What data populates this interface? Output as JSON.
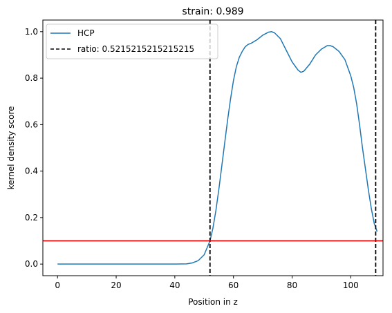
{
  "chart_data": {
    "type": "line",
    "title": "strain: 0.989",
    "xlabel": "Position in z",
    "ylabel": "kernel density score",
    "xlim": [
      -5,
      111
    ],
    "ylim": [
      -0.05,
      1.05
    ],
    "xticks": [
      0,
      20,
      40,
      60,
      80,
      100
    ],
    "yticks": [
      0.0,
      0.2,
      0.4,
      0.6,
      0.8,
      1.0
    ],
    "grid": false,
    "legend_position": "top-left",
    "series": [
      {
        "name": "HCP",
        "color": "#1f77b4",
        "x": [
          0,
          10,
          20,
          30,
          40,
          44,
          46,
          48,
          50,
          52,
          53,
          54,
          55,
          56,
          57,
          58,
          59,
          60,
          61,
          62,
          63,
          64,
          65,
          66,
          68,
          70,
          72,
          73,
          74,
          76,
          78,
          80,
          82,
          83,
          84,
          86,
          88,
          90,
          92,
          93,
          94,
          96,
          98,
          100,
          101,
          102,
          103,
          104,
          105,
          106,
          107,
          108,
          109
        ],
        "y": [
          0.0,
          0.0,
          0.0,
          0.0,
          0.0,
          0.001,
          0.005,
          0.015,
          0.04,
          0.1,
          0.155,
          0.23,
          0.32,
          0.42,
          0.52,
          0.62,
          0.71,
          0.79,
          0.85,
          0.89,
          0.915,
          0.935,
          0.945,
          0.95,
          0.965,
          0.985,
          0.998,
          1.0,
          0.995,
          0.97,
          0.92,
          0.87,
          0.835,
          0.825,
          0.83,
          0.86,
          0.9,
          0.925,
          0.94,
          0.94,
          0.935,
          0.915,
          0.88,
          0.81,
          0.76,
          0.69,
          0.6,
          0.5,
          0.41,
          0.32,
          0.24,
          0.175,
          0.14
        ]
      }
    ],
    "vlines": [
      {
        "name": "ratio: 0.5215215215215215",
        "x": [
          52,
          108.5
        ],
        "color": "#000000",
        "style": "dashed"
      }
    ],
    "hline": {
      "y": 0.1,
      "color": "#e00000"
    }
  }
}
